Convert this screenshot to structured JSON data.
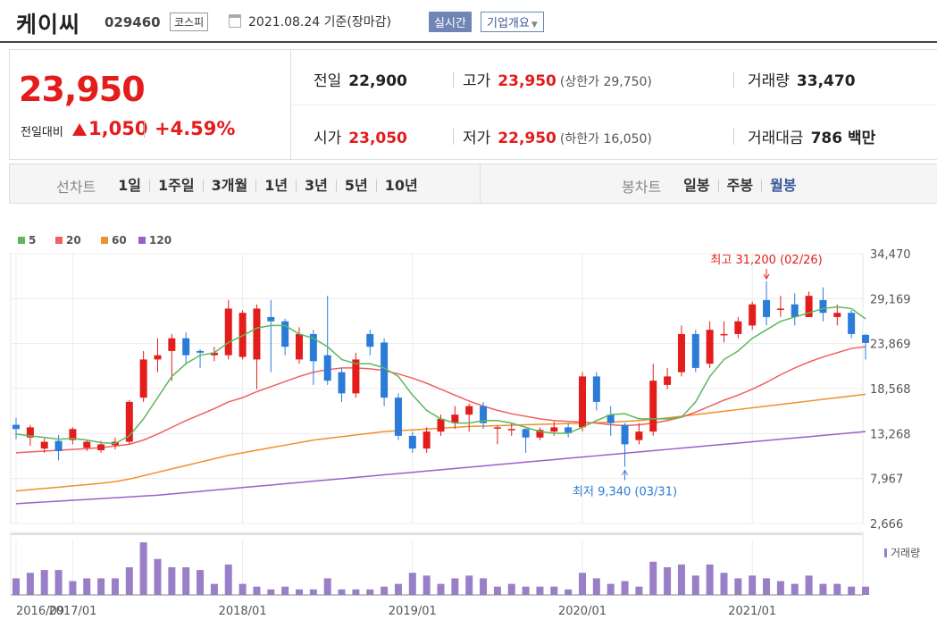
{
  "header": {
    "company_name": "케이씨",
    "stock_code": "029460",
    "market_badge": "코스피",
    "date_text": "2021.08.24 기준(장마감)",
    "realtime_button": "실시간",
    "overview_button": "기업개요"
  },
  "quote": {
    "price": "23,950",
    "change_label": "전일대비",
    "change": "1,050",
    "change_pct": "+4.59%",
    "prev_label": "전일",
    "prev": "22,900",
    "high_label": "고가",
    "high": "23,950",
    "upper_limit": "(상한가 29,750)",
    "volume_label": "거래량",
    "volume": "33,470",
    "open_label": "시가",
    "open": "23,050",
    "low_label": "저가",
    "low": "22,950",
    "lower_limit": "(하한가 16,050)",
    "amount_label": "거래대금",
    "amount": "786 백만"
  },
  "tabs": {
    "line_label": "선차트",
    "line_periods": [
      "1일",
      "1주일",
      "3개월",
      "1년",
      "3년",
      "5년",
      "10년"
    ],
    "candle_label": "봉차트",
    "candle_periods": [
      "일봉",
      "주봉",
      "월봉"
    ],
    "active": "월봉"
  },
  "colors": {
    "up": "#e31c1c",
    "down": "#2b7bd9",
    "ma5": "#5cb85c",
    "ma20": "#f06060",
    "ma60": "#f0902a",
    "ma120": "#9b5fc9",
    "volume": "#9a7fc8"
  },
  "chart_data": {
    "type": "candlestick",
    "legend": [
      {
        "name": "5"
      },
      {
        "name": "20"
      },
      {
        "name": "60"
      },
      {
        "name": "120"
      }
    ],
    "y_ticks": [
      "34,470",
      "29,169",
      "23,869",
      "18,568",
      "13,268",
      "7,967",
      "2,666"
    ],
    "ylim": [
      2666,
      34470
    ],
    "x_ticks": [
      {
        "label": "2016/09",
        "index": 0
      },
      {
        "label": "2017/01",
        "index": 4
      },
      {
        "label": "2018/01",
        "index": 16
      },
      {
        "label": "2019/01",
        "index": 28
      },
      {
        "label": "2020/01",
        "index": 40
      },
      {
        "label": "2021/01",
        "index": 52
      }
    ],
    "annotation_high": "최고 31,200 (02/26)",
    "annotation_low": "최저 9,340 (03/31)",
    "volume_label": "거래량",
    "candles": [
      [
        14300,
        13800,
        15100,
        12600
      ],
      [
        12800,
        14000,
        14300,
        11800
      ],
      [
        11500,
        12300,
        12700,
        11000
      ],
      [
        12400,
        11200,
        13100,
        10100
      ],
      [
        12500,
        13800,
        14000,
        12000
      ],
      [
        11600,
        12300,
        12500,
        11200
      ],
      [
        11300,
        12000,
        12400,
        11000
      ],
      [
        11900,
        12300,
        12800,
        11400
      ],
      [
        12300,
        17000,
        17200,
        12000
      ],
      [
        17500,
        22000,
        23000,
        17000
      ],
      [
        22000,
        22500,
        24500,
        20500
      ],
      [
        23000,
        24500,
        25000,
        19500
      ],
      [
        24500,
        22500,
        25200,
        21500
      ],
      [
        23000,
        22800,
        23200,
        21000
      ],
      [
        22500,
        22800,
        23500,
        21800
      ],
      [
        22500,
        28000,
        29000,
        22000
      ],
      [
        22300,
        27500,
        27800,
        22000
      ],
      [
        22000,
        28000,
        28500,
        18500
      ],
      [
        27000,
        26500,
        29000,
        20500
      ],
      [
        26500,
        23500,
        26800,
        22500
      ],
      [
        22000,
        25000,
        25800,
        21500
      ],
      [
        25000,
        21800,
        25500,
        19000
      ],
      [
        22500,
        19500,
        29500,
        19000
      ],
      [
        20500,
        18000,
        21000,
        17000
      ],
      [
        18000,
        22000,
        22800,
        17500
      ],
      [
        25000,
        23500,
        25500,
        22500
      ],
      [
        24000,
        17500,
        24500,
        16500
      ],
      [
        17500,
        13000,
        18000,
        12500
      ],
      [
        13000,
        11500,
        13500,
        11000
      ],
      [
        11500,
        13500,
        14000,
        11000
      ],
      [
        13500,
        15000,
        15500,
        13000
      ],
      [
        14500,
        15500,
        16500,
        13800
      ],
      [
        15500,
        16500,
        16800,
        13500
      ],
      [
        16500,
        14500,
        17000,
        13800
      ],
      [
        14000,
        14000,
        14200,
        12000
      ],
      [
        13700,
        13800,
        14500,
        13000
      ],
      [
        13800,
        12800,
        13900,
        11000
      ],
      [
        12800,
        13700,
        14000,
        12500
      ],
      [
        13500,
        14000,
        14700,
        13000
      ],
      [
        14000,
        13300,
        14500,
        12800
      ],
      [
        14000,
        20000,
        20500,
        13500
      ],
      [
        20000,
        17000,
        20500,
        16000
      ],
      [
        15500,
        14500,
        16500,
        13000
      ],
      [
        14300,
        12000,
        14500,
        9340
      ],
      [
        12500,
        13500,
        14500,
        12000
      ],
      [
        13500,
        19500,
        21500,
        13000
      ],
      [
        19000,
        20000,
        21000,
        18500
      ],
      [
        20500,
        25000,
        26000,
        20000
      ],
      [
        25000,
        21000,
        25500,
        20500
      ],
      [
        21500,
        25500,
        26500,
        21000
      ],
      [
        25000,
        25000,
        26500,
        24000
      ],
      [
        25000,
        26500,
        27000,
        24500
      ],
      [
        26000,
        28500,
        28800,
        25500
      ],
      [
        29000,
        27000,
        31200,
        26000
      ],
      [
        28000,
        28000,
        29500,
        27000
      ],
      [
        28500,
        27000,
        29800,
        26000
      ],
      [
        27000,
        29500,
        30000,
        28000
      ],
      [
        29000,
        27500,
        30500,
        26500
      ],
      [
        27000,
        27500,
        28500,
        26000
      ],
      [
        27500,
        25000,
        27800,
        24500
      ],
      [
        24900,
        23950,
        25000,
        22000
      ]
    ],
    "ma5": [
      13200,
      13000,
      12800,
      12600,
      12700,
      12500,
      12200,
      12100,
      13000,
      15000,
      17500,
      20000,
      21500,
      22500,
      22800,
      24000,
      24800,
      25700,
      26000,
      26000,
      25000,
      24500,
      23500,
      22000,
      21500,
      21500,
      21000,
      20000,
      17800,
      16000,
      15000,
      14500,
      14500,
      14800,
      14800,
      14500,
      14000,
      13500,
      13300,
      13300,
      14000,
      14800,
      15500,
      15600,
      15000,
      15000,
      15000,
      15200,
      17000,
      20000,
      22000,
      23000,
      24500,
      25500,
      26500,
      27000,
      27500,
      28000,
      28200,
      28000,
      26800
    ],
    "ma20": [
      11000,
      11100,
      11200,
      11300,
      11400,
      11500,
      11600,
      11800,
      12000,
      12500,
      13200,
      14000,
      14800,
      15500,
      16200,
      17000,
      17500,
      18200,
      18800,
      19400,
      20000,
      20500,
      20800,
      21000,
      21000,
      20900,
      20700,
      20300,
      19800,
      19200,
      18500,
      17800,
      17100,
      16500,
      16000,
      15600,
      15300,
      15000,
      14800,
      14700,
      14600,
      14500,
      14300,
      14200,
      14300,
      14500,
      14800,
      15200,
      15800,
      16500,
      17200,
      17800,
      18500,
      19300,
      20200,
      21000,
      21700,
      22300,
      22800,
      23300,
      23500
    ],
    "ma60": [
      6500,
      6650,
      6800,
      6950,
      7100,
      7250,
      7400,
      7600,
      7900,
      8300,
      8700,
      9100,
      9500,
      9900,
      10300,
      10700,
      11000,
      11300,
      11600,
      11900,
      12200,
      12500,
      12700,
      12900,
      13100,
      13300,
      13500,
      13600,
      13700,
      13800,
      13900,
      14000,
      14100,
      14150,
      14200,
      14250,
      14300,
      14350,
      14400,
      14450,
      14500,
      14550,
      14600,
      14700,
      14800,
      14950,
      15100,
      15300,
      15500,
      15700,
      15900,
      16100,
      16300,
      16500,
      16700,
      16900,
      17100,
      17300,
      17500,
      17700,
      17900
    ],
    "ma120": [
      5000,
      5100,
      5200,
      5300,
      5400,
      5500,
      5600,
      5700,
      5800,
      5900,
      6000,
      6150,
      6300,
      6450,
      6600,
      6750,
      6900,
      7050,
      7200,
      7350,
      7500,
      7650,
      7800,
      7950,
      8100,
      8250,
      8400,
      8550,
      8700,
      8850,
      9000,
      9150,
      9300,
      9450,
      9600,
      9750,
      9900,
      10050,
      10200,
      10350,
      10500,
      10650,
      10800,
      10950,
      11100,
      11250,
      11400,
      11550,
      11700,
      11850,
      12000,
      12150,
      12300,
      12450,
      12600,
      12750,
      12900,
      13050,
      13200,
      13350,
      13500
    ],
    "volume": [
      0.3,
      0.4,
      0.45,
      0.45,
      0.25,
      0.3,
      0.3,
      0.3,
      0.5,
      0.95,
      0.65,
      0.5,
      0.5,
      0.45,
      0.2,
      0.55,
      0.2,
      0.15,
      0.1,
      0.15,
      0.1,
      0.1,
      0.3,
      0.1,
      0.1,
      0.1,
      0.15,
      0.2,
      0.4,
      0.35,
      0.2,
      0.3,
      0.35,
      0.3,
      0.15,
      0.2,
      0.15,
      0.15,
      0.15,
      0.1,
      0.4,
      0.3,
      0.2,
      0.25,
      0.15,
      0.6,
      0.5,
      0.55,
      0.35,
      0.55,
      0.4,
      0.3,
      0.35,
      0.3,
      0.25,
      0.2,
      0.35,
      0.2,
      0.2,
      0.15,
      0.15
    ]
  }
}
